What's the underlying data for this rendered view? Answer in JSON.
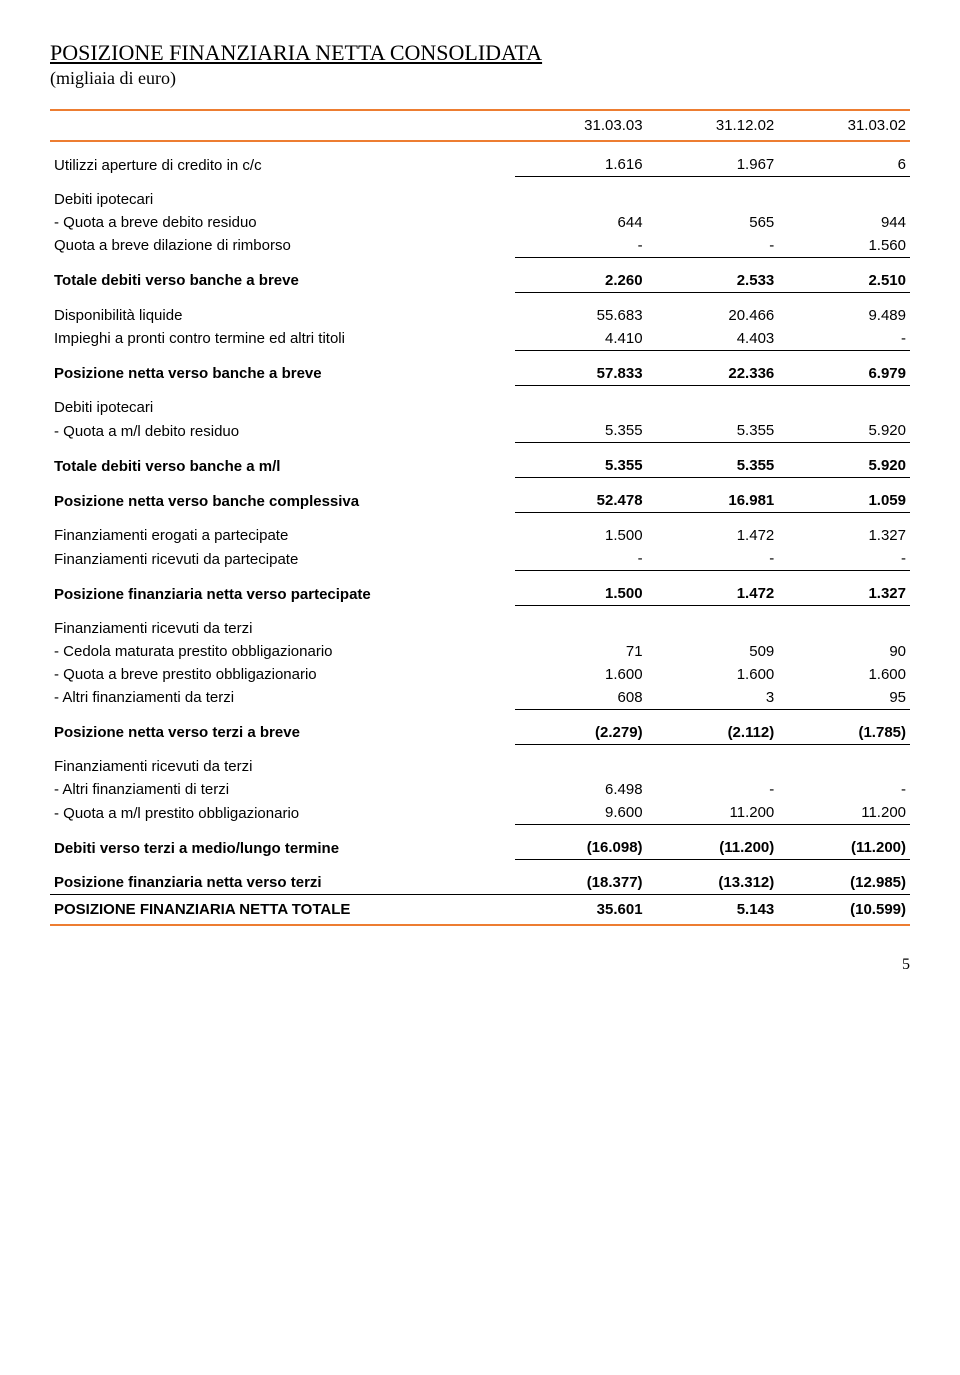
{
  "title": "POSIZIONE FINANZIARIA NETTA CONSOLIDATA",
  "subtitle": "(migliaia di euro)",
  "headers": {
    "c1": "31.03.03",
    "c2": "31.12.02",
    "c3": "31.03.02"
  },
  "r1": {
    "l": "Utilizzi aperture di credito in c/c",
    "v": [
      "1.616",
      "1.967",
      "6"
    ]
  },
  "r2": {
    "l": "Debiti ipotecari"
  },
  "r3": {
    "l": " - Quota a breve debito residuo",
    "v": [
      "644",
      "565",
      "944"
    ]
  },
  "r4": {
    "l": "Quota a breve dilazione di rimborso",
    "v": [
      "-",
      "-",
      "1.560"
    ]
  },
  "r5": {
    "l": "Totale debiti verso banche a breve",
    "v": [
      "2.260",
      "2.533",
      "2.510"
    ]
  },
  "r6": {
    "l": "Disponibilità liquide",
    "v": [
      "55.683",
      "20.466",
      "9.489"
    ]
  },
  "r7": {
    "l": "Impieghi a pronti contro termine ed altri titoli",
    "v": [
      "4.410",
      "4.403",
      "-"
    ]
  },
  "r8": {
    "l": "Posizione netta verso banche a breve",
    "v": [
      "57.833",
      "22.336",
      "6.979"
    ]
  },
  "r9": {
    "l": "Debiti ipotecari"
  },
  "r10": {
    "l": " - Quota a m/l debito residuo",
    "v": [
      "5.355",
      "5.355",
      "5.920"
    ]
  },
  "r11": {
    "l": "Totale debiti verso banche a m/l",
    "v": [
      "5.355",
      "5.355",
      "5.920"
    ]
  },
  "r12": {
    "l": "Posizione netta verso banche complessiva",
    "v": [
      "52.478",
      "16.981",
      "1.059"
    ]
  },
  "r13": {
    "l": "Finanziamenti erogati a partecipate",
    "v": [
      "1.500",
      "1.472",
      "1.327"
    ]
  },
  "r14": {
    "l": "Finanziamenti ricevuti da partecipate",
    "v": [
      "-",
      "-",
      "-"
    ]
  },
  "r15": {
    "l": "Posizione finanziaria netta verso partecipate",
    "v": [
      "1.500",
      "1.472",
      "1.327"
    ]
  },
  "r16": {
    "l": "Finanziamenti ricevuti da terzi"
  },
  "r17": {
    "l": " - Cedola maturata prestito obbligazionario",
    "v": [
      "71",
      "509",
      "90"
    ]
  },
  "r18": {
    "l": " - Quota a breve prestito obbligazionario",
    "v": [
      "1.600",
      "1.600",
      "1.600"
    ]
  },
  "r19": {
    "l": " - Altri finanziamenti da terzi",
    "v": [
      "608",
      "3",
      "95"
    ]
  },
  "r20": {
    "l": "Posizione netta verso terzi a breve",
    "v": [
      "(2.279)",
      "(2.112)",
      "(1.785)"
    ]
  },
  "r21": {
    "l": "Finanziamenti ricevuti da terzi"
  },
  "r22": {
    "l": "- Altri finanziamenti di terzi",
    "v": [
      "6.498",
      "-",
      "-"
    ]
  },
  "r23": {
    "l": " - Quota a m/l prestito obbligazionario",
    "v": [
      "9.600",
      "11.200",
      "11.200"
    ]
  },
  "r24": {
    "l": "Debiti verso terzi a medio/lungo termine",
    "v": [
      "(16.098)",
      "(11.200)",
      "(11.200)"
    ]
  },
  "r25": {
    "l": "Posizione finanziaria netta verso terzi",
    "v": [
      "(18.377)",
      "(13.312)",
      "(12.985)"
    ]
  },
  "r26": {
    "l": "POSIZIONE FINANZIARIA NETTA TOTALE",
    "v": [
      "35.601",
      "5.143",
      "(10.599)"
    ]
  },
  "page": "5"
}
